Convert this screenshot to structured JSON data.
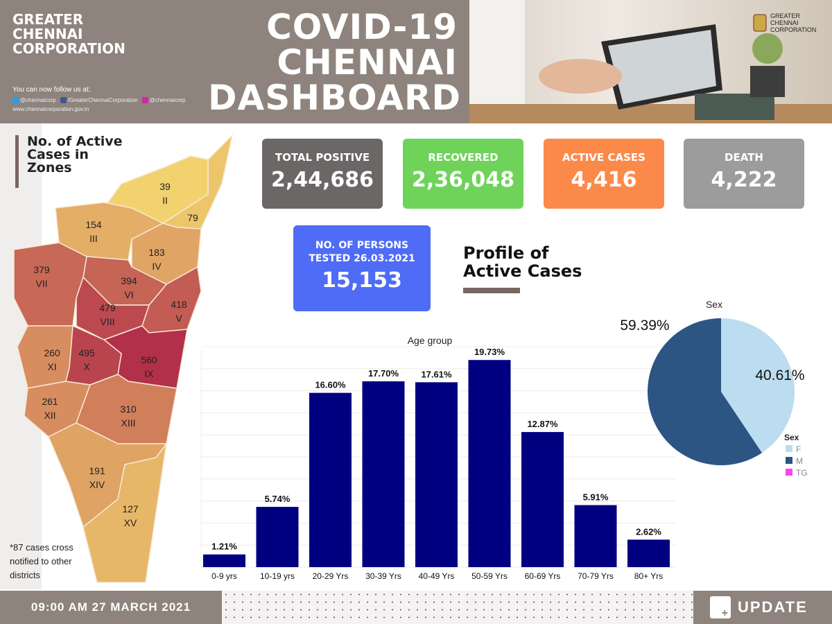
{
  "header": {
    "org_lines": [
      "GREATER",
      "CHENNAI",
      "CORPORATION"
    ],
    "follow": "You can now follow us at:",
    "twitter": "@chennaicorp",
    "facebook": "/GreaterChennaiCorporation",
    "instagram": "@chennaicorp",
    "website": "www.chennaicorporation.gov.in",
    "title_lines": [
      "COVID-19",
      "CHENNAI",
      "DASHBOARD"
    ],
    "logo_text": [
      "GREATER",
      "CHENNAI",
      "CORPORATION"
    ]
  },
  "stats": [
    {
      "label": "TOTAL POSITIVE",
      "value": "2,44,686",
      "color": "#6b6766"
    },
    {
      "label": "RECOVERED",
      "value": "2,36,048",
      "color": "#6fd35a"
    },
    {
      "label": "ACTIVE CASES",
      "value": "4,416",
      "color": "#fb8a4a"
    },
    {
      "label": "DEATH",
      "value": "4,222",
      "color": "#9c9c9c"
    }
  ],
  "tested": {
    "label_lines": [
      "NO. OF PERSONS",
      "TESTED 26.03.2021"
    ],
    "value": "15,153",
    "color": "#4e6cf5"
  },
  "map": {
    "title": "No. of Active Cases in Zones",
    "note_lines": [
      "*87 cases cross",
      "notified to other",
      "districts"
    ],
    "zones": [
      {
        "zone": "I",
        "cases": 79
      },
      {
        "zone": "II",
        "cases": 39
      },
      {
        "zone": "III",
        "cases": 154
      },
      {
        "zone": "IV",
        "cases": 183
      },
      {
        "zone": "V",
        "cases": 418
      },
      {
        "zone": "VI",
        "cases": 394
      },
      {
        "zone": "VII",
        "cases": 379
      },
      {
        "zone": "VIII",
        "cases": 479
      },
      {
        "zone": "IX",
        "cases": 560
      },
      {
        "zone": "X",
        "cases": 495
      },
      {
        "zone": "XI",
        "cases": 260
      },
      {
        "zone": "XII",
        "cases": 261
      },
      {
        "zone": "XIII",
        "cases": 310
      },
      {
        "zone": "XIV",
        "cases": 191
      },
      {
        "zone": "XV",
        "cases": 127
      }
    ]
  },
  "profile_title_lines": [
    "Profile of",
    "Active Cases"
  ],
  "chart_data": [
    {
      "type": "bar",
      "title": "Age group",
      "categories": [
        "0-9 yrs",
        "10-19 yrs",
        "20-29 Yrs",
        "30-39 Yrs",
        "40-49 Yrs",
        "50-59 Yrs",
        "60-69 Yrs",
        "70-79 Yrs",
        "80+ Yrs"
      ],
      "values": [
        1.21,
        5.74,
        16.6,
        17.7,
        17.61,
        19.73,
        12.87,
        5.91,
        2.62
      ],
      "data_labels": [
        "1.21%",
        "5.74%",
        "16.60%",
        "17.70%",
        "17.61%",
        "19.73%",
        "12.87%",
        "5.91%",
        "2.62%"
      ],
      "ylim": [
        0,
        21
      ],
      "grid": true,
      "color": "#000080"
    },
    {
      "type": "pie",
      "title": "Sex",
      "slices": [
        {
          "name": "F",
          "value": 40.61,
          "label": "40.61%",
          "color": "#bcdcf0"
        },
        {
          "name": "M",
          "value": 59.39,
          "label": "59.39%",
          "color": "#2c5584"
        },
        {
          "name": "TG",
          "value": 0,
          "color": "#ff44ee"
        }
      ],
      "legend_title": "Sex",
      "legend": "right"
    }
  ],
  "footer": {
    "timestamp": "09:00 AM 27 MARCH 2021",
    "update": "UPDATE"
  }
}
